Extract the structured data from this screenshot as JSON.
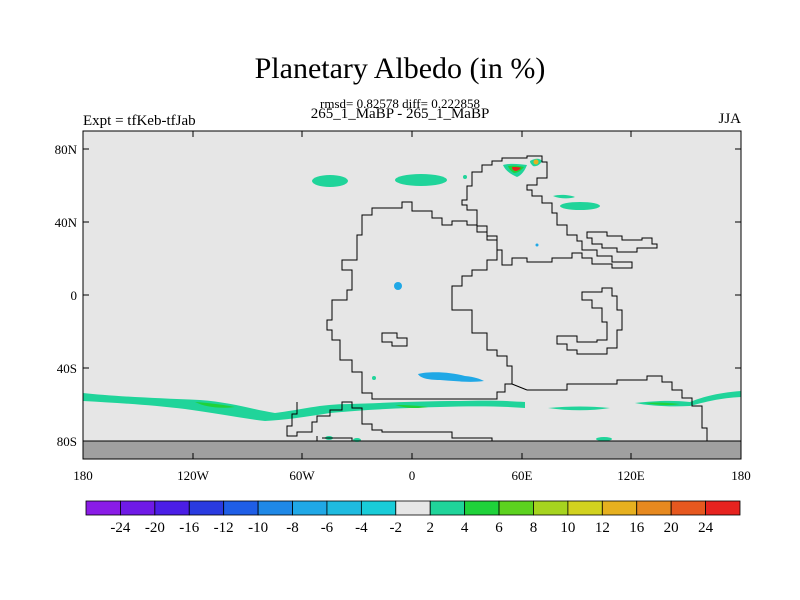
{
  "title": "Planetary Albedo (in %)",
  "stats": "rmsd= 0.82578 diff= 0.222858",
  "subtitle": "265_1_MaBP - 265_1_MaBP",
  "left_label": "Expt = tfKeb-tfJab",
  "right_label": "JJA",
  "map": {
    "lat_ticks": [
      "80N",
      "40N",
      "0",
      "40S",
      "80S"
    ],
    "lon_ticks": [
      "180",
      "120W",
      "60W",
      "0",
      "60E",
      "120E",
      "180"
    ],
    "colors": {
      "background_land": "#e6e6e6",
      "masked": "#a0a0a0",
      "coast": "#000000"
    }
  },
  "colorbar": {
    "labels": [
      "-24",
      "-20",
      "-16",
      "-12",
      "-10",
      "-8",
      "-6",
      "-4",
      "-2",
      "2",
      "4",
      "6",
      "8",
      "10",
      "12",
      "16",
      "20",
      "24"
    ],
    "colors": [
      "#8a1ce6",
      "#6f1ae6",
      "#4b1ee6",
      "#2a3be0",
      "#1f5ee6",
      "#1f88e6",
      "#20a8e6",
      "#1fbbe0",
      "#19ccd8",
      "#e6e6e6",
      "#20d49a",
      "#1fd23a",
      "#5cd21f",
      "#a6d41f",
      "#d2d21f",
      "#e6b01f",
      "#e6891f",
      "#e6581f",
      "#e6231f"
    ]
  }
}
